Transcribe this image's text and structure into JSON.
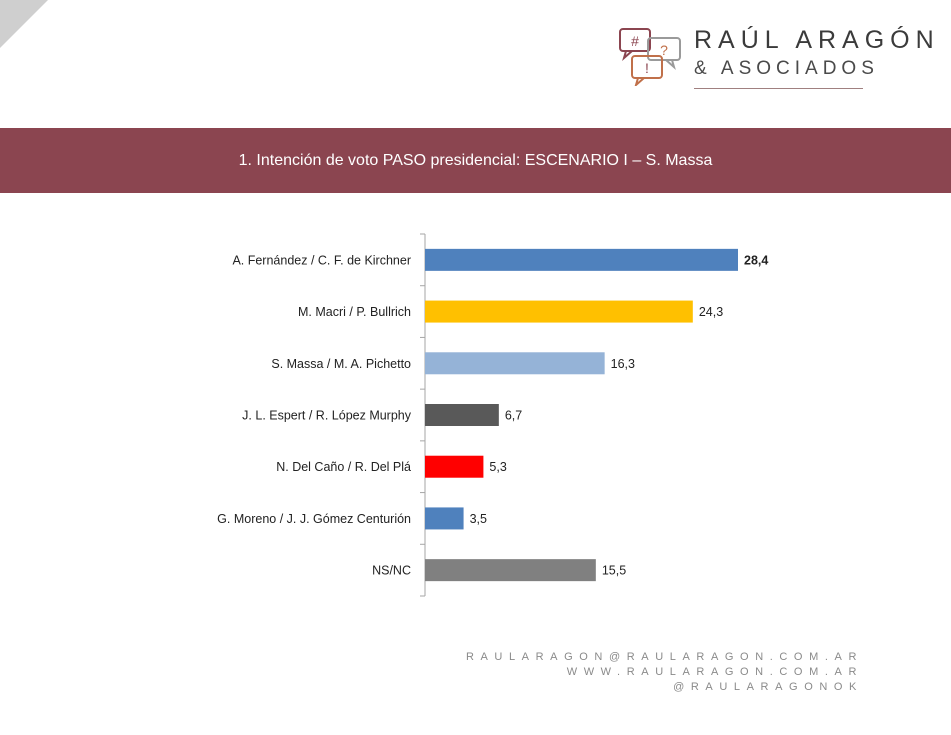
{
  "brand": {
    "name": "RAÚL ARAGÓN",
    "sub": "& ASOCIADOS",
    "icon_glyphs": [
      "#",
      "?",
      "!"
    ]
  },
  "banner": {
    "title": "1. Intención de voto PASO presidencial: ESCENARIO I – S. Massa"
  },
  "chart_data": {
    "type": "bar",
    "orientation": "horizontal",
    "title": "",
    "xlabel": "",
    "ylabel": "",
    "xlim": [
      0,
      30
    ],
    "grid": false,
    "legend": "none",
    "categories": [
      "A. Fernández / C. F. de Kirchner",
      "M. Macri / P. Bullrich",
      "S. Massa / M. A. Pichetto",
      "J. L. Espert / R. López Murphy",
      "N. Del Caño / R. Del Plá",
      "G. Moreno / J. J. Gómez Centurión",
      "NS/NC"
    ],
    "values": [
      28.4,
      24.3,
      16.3,
      6.7,
      5.3,
      3.5,
      15.5
    ],
    "value_labels": [
      "28,4",
      "24,3",
      "16,3",
      "6,7",
      "5,3",
      "3,5",
      "15,5"
    ],
    "bold_labels": [
      true,
      false,
      false,
      false,
      false,
      false,
      false
    ],
    "colors": [
      "#4f81bd",
      "#ffc000",
      "#95b3d7",
      "#595959",
      "#ff0000",
      "#4f81bd",
      "#808080"
    ]
  },
  "footer": {
    "email": "RAULARAGON@RAULARAGON.COM.AR",
    "web": "WWW.RAULARAGON.COM.AR",
    "handle": "@RAULARAGONOK"
  }
}
